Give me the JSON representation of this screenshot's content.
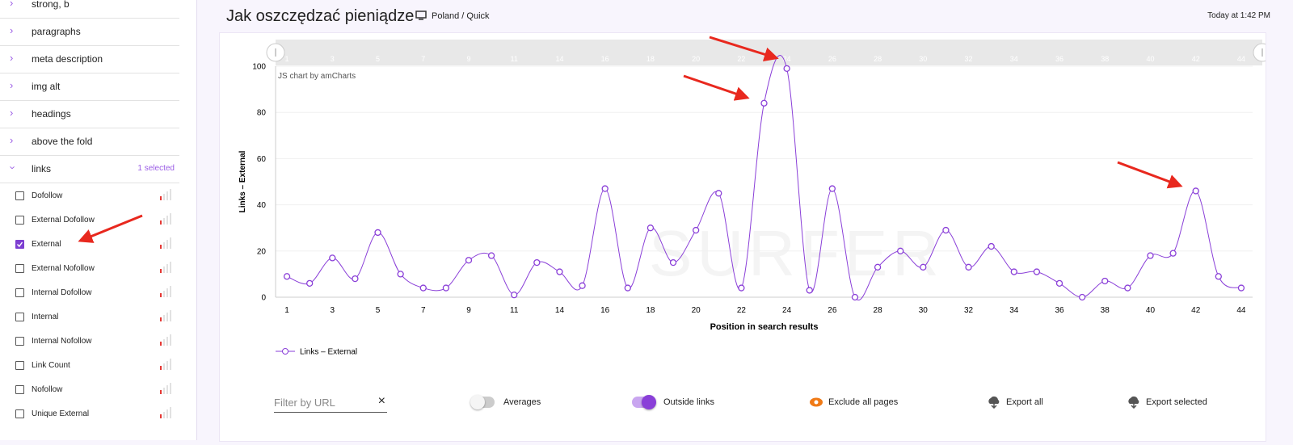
{
  "header": {
    "title": "Jak oszczędzać pieniądze",
    "location": "Poland / Quick",
    "timestamp": "Today at 1:42 PM"
  },
  "sidebar": {
    "sections": [
      "strong, b",
      "paragraphs",
      "meta description",
      "img alt",
      "headings",
      "above the fold"
    ],
    "open_section": {
      "name": "links",
      "status": "1 selected",
      "items": [
        {
          "label": "Dofollow",
          "checked": false
        },
        {
          "label": "External Dofollow",
          "checked": false
        },
        {
          "label": "External",
          "checked": true
        },
        {
          "label": "External Nofollow",
          "checked": false
        },
        {
          "label": "Internal Dofollow",
          "checked": false
        },
        {
          "label": "Internal",
          "checked": false
        },
        {
          "label": "Internal Nofollow",
          "checked": false
        },
        {
          "label": "Link Count",
          "checked": false
        },
        {
          "label": "Nofollow",
          "checked": false
        },
        {
          "label": "Unique External",
          "checked": false
        }
      ]
    }
  },
  "chart_data": {
    "type": "line",
    "credit": "JS chart by amCharts",
    "watermark": "SURFER",
    "x_label": "Position in search results",
    "y_label": "Links – External",
    "categories": [
      1,
      null,
      3,
      null,
      5,
      null,
      7,
      null,
      9,
      null,
      11,
      null,
      14,
      null,
      16,
      null,
      18,
      null,
      20,
      null,
      22,
      null,
      24,
      null,
      26,
      null,
      28,
      null,
      30,
      null,
      32,
      null,
      34,
      null,
      36,
      null,
      38,
      null,
      40,
      null,
      42,
      null,
      44
    ],
    "series": [
      {
        "name": "Links – External",
        "color": "#8a3fd8",
        "values": [
          9,
          6,
          17,
          8,
          28,
          10,
          4,
          4,
          16,
          18,
          1,
          15,
          11,
          5,
          47,
          4,
          30,
          15,
          29,
          45,
          4,
          84,
          99,
          3,
          47,
          0,
          13,
          20,
          13,
          29,
          13,
          22,
          11,
          11,
          6,
          0,
          7,
          4,
          18,
          19,
          46,
          9,
          4
        ]
      }
    ],
    "ylim": [
      0,
      100
    ],
    "yticks": [
      0,
      20,
      40,
      60,
      80,
      100
    ],
    "grid": true
  },
  "controls": {
    "filter_placeholder": "Filter by URL",
    "toggles": [
      {
        "label": "Averages",
        "on": false
      },
      {
        "label": "Outside links",
        "on": true
      }
    ],
    "buttons": [
      "Exclude all pages",
      "Export all",
      "Export selected"
    ]
  }
}
